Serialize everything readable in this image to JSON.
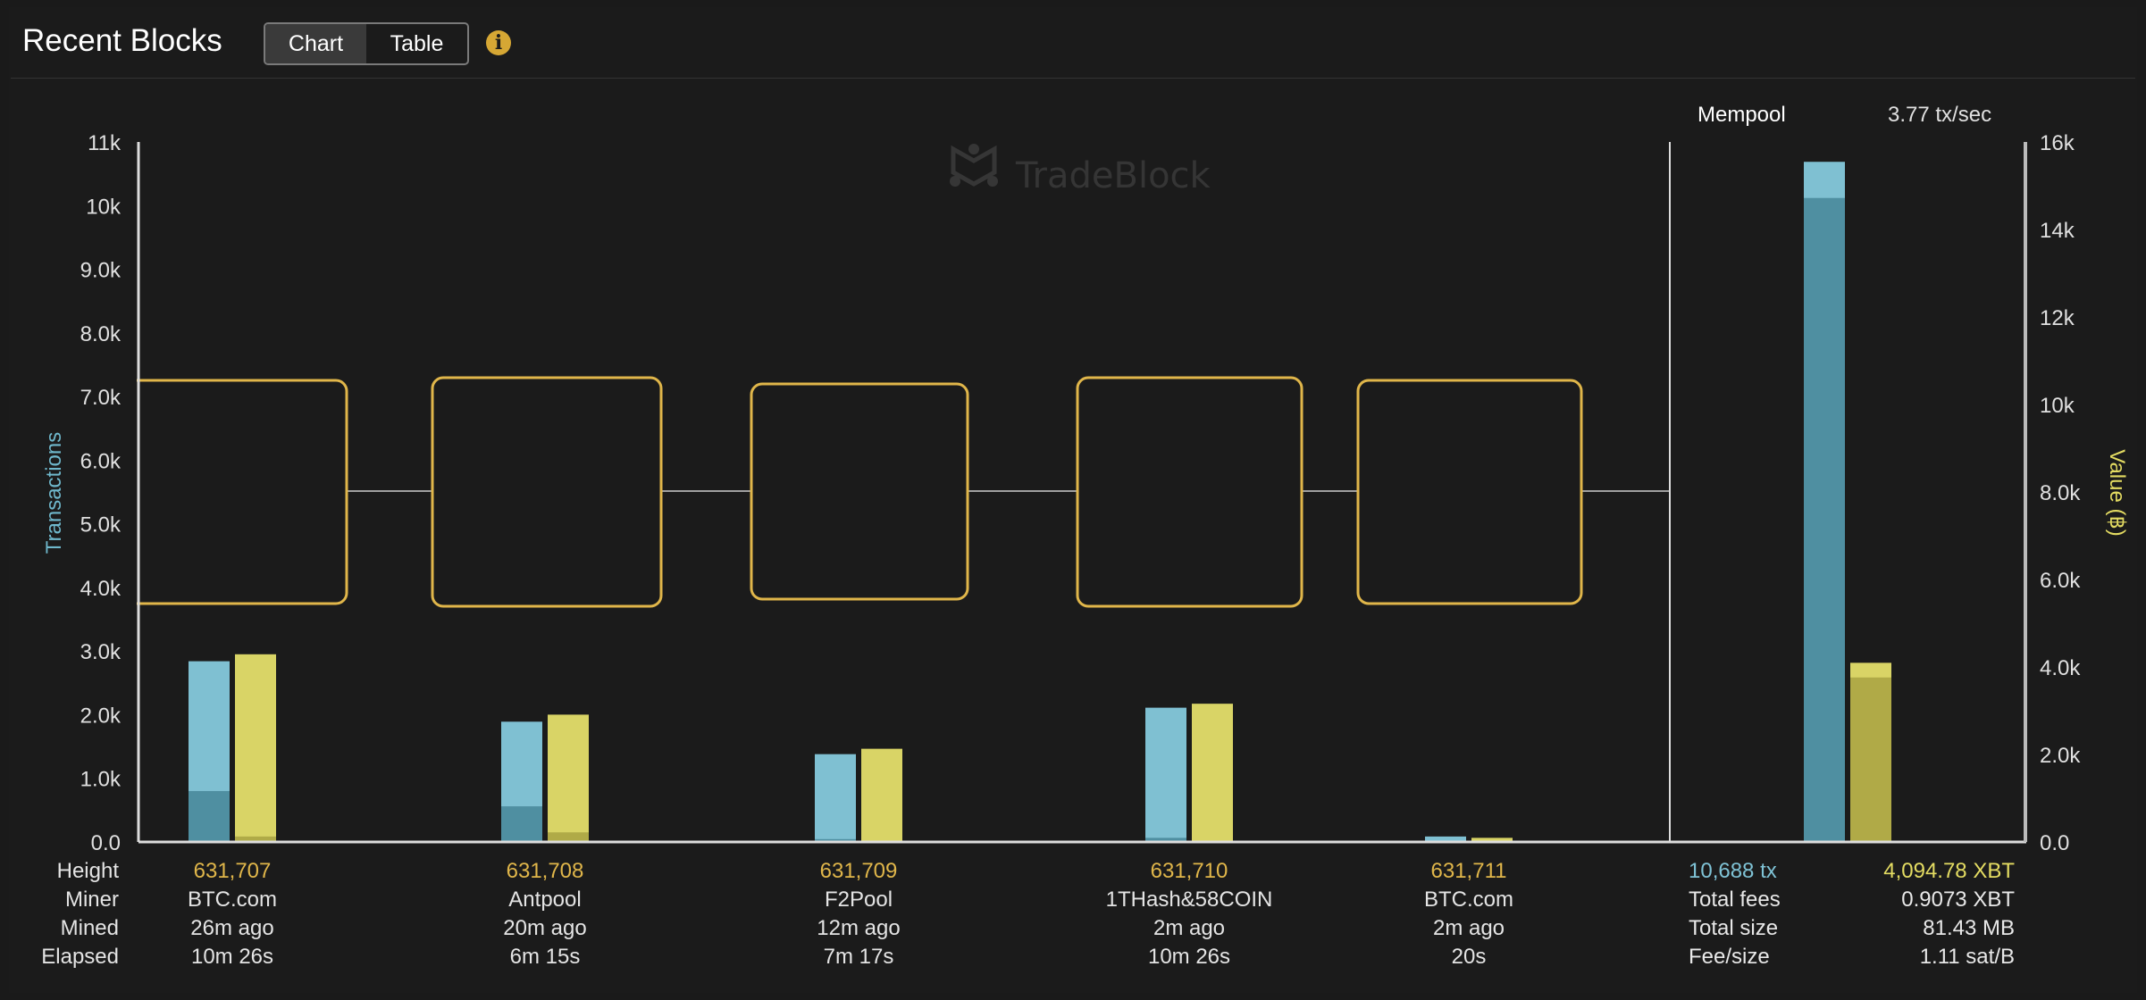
{
  "header": {
    "title": "Recent Blocks",
    "tabs": [
      {
        "label": "Chart",
        "active": true
      },
      {
        "label": "Table",
        "active": false
      }
    ],
    "info_icon": "info-icon"
  },
  "watermark": "TradeBlock",
  "mempool": {
    "title": "Mempool",
    "rate": "3.77 tx/sec",
    "tx": "10,688 tx",
    "value": "4,094.78 XBT",
    "stats": [
      {
        "label": "Total fees",
        "value": "0.9073 XBT"
      },
      {
        "label": "Total size",
        "value": "81.43 MB"
      },
      {
        "label": "Fee/size",
        "value": "1.11 sat/B"
      }
    ]
  },
  "row_labels": [
    "Height",
    "Miner",
    "Mined",
    "Elapsed"
  ],
  "blocks": [
    {
      "height": "631,707",
      "miner": "BTC.com",
      "mined": "26m ago",
      "elapsed": "10m 26s"
    },
    {
      "height": "631,708",
      "miner": "Antpool",
      "mined": "20m ago",
      "elapsed": "6m 15s"
    },
    {
      "height": "631,709",
      "miner": "F2Pool",
      "mined": "12m ago",
      "elapsed": "7m 17s"
    },
    {
      "height": "631,710",
      "miner": "1THash&58COIN",
      "mined": "2m ago",
      "elapsed": "10m 26s"
    },
    {
      "height": "631,711",
      "miner": "BTC.com",
      "mined": "2m ago",
      "elapsed": "20s"
    }
  ],
  "colors": {
    "tx": "#7fc0d2",
    "tx_dark": "#4f8fa1",
    "value": "#d9d466",
    "value_dark": "#b0aa47",
    "block_outline": "#e0b64a",
    "tx_label": "#6fb8cc",
    "value_label": "#e4dc62"
  },
  "chart_data": {
    "type": "bar",
    "categories": [
      "631,707",
      "631,708",
      "631,709",
      "631,710",
      "631,711",
      "Mempool"
    ],
    "y_left": {
      "label": "Transactions",
      "range": [
        0,
        11000
      ],
      "ticks": [
        "0.0",
        "1.0k",
        "2.0k",
        "3.0k",
        "4.0k",
        "5.0k",
        "6.0k",
        "7.0k",
        "8.0k",
        "9.0k",
        "10k",
        "11k"
      ]
    },
    "y_right": {
      "label": "Value (฿)",
      "range": [
        0,
        16000
      ],
      "ticks": [
        "0.0",
        "2.0k",
        "4.0k",
        "6.0k",
        "8.0k",
        "10k",
        "12k",
        "14k",
        "16k"
      ]
    },
    "series": [
      {
        "axis": "left",
        "values": [
          2840,
          1890,
          1380,
          2110,
          86,
          10688
        ],
        "highlight_values": [
          800,
          560,
          45,
          65,
          5,
          10120
        ]
      },
      {
        "axis": "right",
        "values": [
          4290,
          2910,
          2130,
          3160,
          94,
          4094.78
        ],
        "highlight_values": [
          125,
          220,
          30,
          30,
          5,
          3760
        ]
      }
    ],
    "grid": false
  }
}
